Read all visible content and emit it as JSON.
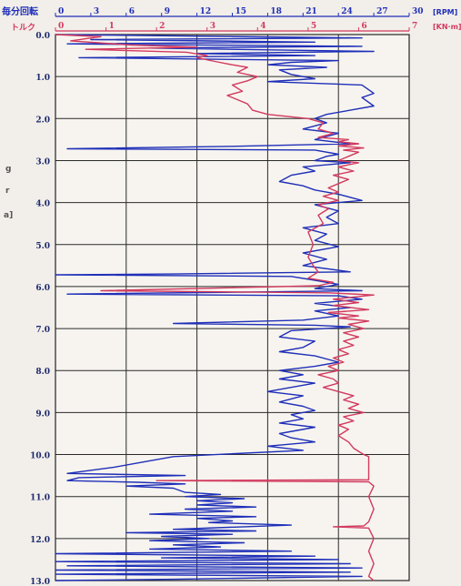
{
  "chart_data": {
    "type": "line",
    "orientation": "vertical-depth",
    "rpm_axis": {
      "label": "毎分回転",
      "unit": "[RPM]",
      "range": [
        0,
        30
      ],
      "ticks": [
        0,
        3,
        6,
        9,
        12,
        15,
        18,
        21,
        24,
        27,
        30
      ],
      "color": "#1f2fb8"
    },
    "torque_axis": {
      "label": "トルク",
      "unit": "[KN·m]",
      "range": [
        0,
        7
      ],
      "ticks": [
        0,
        1,
        2,
        3,
        4,
        5,
        6,
        7
      ],
      "color": "#d23a5e"
    },
    "depth_axis": {
      "range": [
        0,
        13
      ],
      "ticks": [
        "0.0",
        "1.0",
        "2.0",
        "3.0",
        "4.0",
        "5.0",
        "6.0",
        "7.0",
        "8.0",
        "9.0",
        "10.0",
        "11.0",
        "12.0",
        "13.0"
      ]
    },
    "grid": true,
    "side_marks": [
      "g",
      "r",
      "a]"
    ],
    "series": [
      {
        "color": "#1f2fb8",
        "axis": "rpm",
        "points": [
          [
            0,
            0.0
          ],
          [
            26,
            0.08
          ],
          [
            3,
            0.12
          ],
          [
            22,
            0.18
          ],
          [
            1,
            0.22
          ],
          [
            26,
            0.28
          ],
          [
            8,
            0.32
          ],
          [
            27,
            0.4
          ],
          [
            12,
            0.45
          ],
          [
            22,
            0.5
          ],
          [
            2,
            0.55
          ],
          [
            24,
            0.62
          ],
          [
            20,
            0.66
          ],
          [
            18,
            0.72
          ],
          [
            23,
            0.78
          ],
          [
            19,
            0.84
          ],
          [
            20,
            0.95
          ],
          [
            22,
            1.05
          ],
          [
            18,
            1.12
          ],
          [
            26,
            1.2
          ],
          [
            27,
            1.4
          ],
          [
            26,
            1.5
          ],
          [
            27,
            1.7
          ],
          [
            23,
            1.9
          ],
          [
            22,
            2.0
          ],
          [
            23,
            2.1
          ],
          [
            21,
            2.25
          ],
          [
            24,
            2.35
          ],
          [
            22,
            2.5
          ],
          [
            25,
            2.6
          ],
          [
            15,
            2.66
          ],
          [
            1,
            2.72
          ],
          [
            22,
            2.75
          ],
          [
            24,
            2.85
          ],
          [
            23,
            2.9
          ],
          [
            22,
            3.0
          ],
          [
            25,
            3.05
          ],
          [
            21,
            3.15
          ],
          [
            22,
            3.25
          ],
          [
            20,
            3.35
          ],
          [
            19,
            3.5
          ],
          [
            21,
            3.6
          ],
          [
            22,
            3.7
          ],
          [
            24,
            3.8
          ],
          [
            26,
            3.95
          ],
          [
            22,
            4.05
          ],
          [
            24,
            4.2
          ],
          [
            23,
            4.35
          ],
          [
            24,
            4.5
          ],
          [
            21,
            4.6
          ],
          [
            23,
            4.75
          ],
          [
            22,
            4.9
          ],
          [
            24,
            5.05
          ],
          [
            21,
            5.2
          ],
          [
            23,
            5.35
          ],
          [
            21,
            5.5
          ],
          [
            25,
            5.65
          ],
          [
            10,
            5.7
          ],
          [
            0,
            5.72
          ],
          [
            20,
            5.76
          ],
          [
            22,
            5.85
          ],
          [
            24,
            5.95
          ],
          [
            22,
            6.05
          ],
          [
            26,
            6.1
          ],
          [
            1,
            6.18
          ],
          [
            24,
            6.22
          ],
          [
            26,
            6.3
          ],
          [
            22,
            6.4
          ],
          [
            25,
            6.5
          ],
          [
            22,
            6.58
          ],
          [
            24,
            6.7
          ],
          [
            21,
            6.8
          ],
          [
            10,
            6.88
          ],
          [
            22,
            6.92
          ],
          [
            25,
            6.96
          ],
          [
            20,
            7.05
          ],
          [
            19,
            7.2
          ],
          [
            22,
            7.3
          ],
          [
            21,
            7.45
          ],
          [
            19,
            7.55
          ],
          [
            22,
            7.65
          ],
          [
            24,
            7.8
          ],
          [
            22,
            7.9
          ],
          [
            19,
            8.0
          ],
          [
            21,
            8.1
          ],
          [
            19,
            8.2
          ],
          [
            22,
            8.3
          ],
          [
            20,
            8.4
          ],
          [
            18,
            8.5
          ],
          [
            21,
            8.6
          ],
          [
            19,
            8.75
          ],
          [
            21,
            8.85
          ],
          [
            22,
            8.95
          ],
          [
            20,
            9.05
          ],
          [
            21,
            9.15
          ],
          [
            19,
            9.25
          ],
          [
            22,
            9.35
          ],
          [
            19,
            9.5
          ],
          [
            20,
            9.6
          ],
          [
            22,
            9.7
          ],
          [
            18,
            9.8
          ],
          [
            21,
            9.9
          ],
          [
            10,
            10.05
          ],
          [
            5,
            10.3
          ],
          [
            1,
            10.45
          ],
          [
            11,
            10.5
          ],
          [
            2,
            10.55
          ],
          [
            1,
            10.62
          ],
          [
            7,
            10.66
          ],
          [
            11,
            10.7
          ],
          [
            6,
            10.75
          ],
          [
            10,
            10.8
          ],
          [
            11,
            10.9
          ],
          [
            14,
            10.95
          ],
          [
            11,
            11.0
          ],
          [
            16,
            11.05
          ],
          [
            12,
            11.1
          ],
          [
            15,
            11.15
          ],
          [
            12,
            11.2
          ],
          [
            17,
            11.25
          ],
          [
            11,
            11.3
          ],
          [
            15,
            11.35
          ],
          [
            8,
            11.42
          ],
          [
            17,
            11.48
          ],
          [
            12,
            11.52
          ],
          [
            15,
            11.58
          ],
          [
            13,
            11.62
          ],
          [
            20,
            11.68
          ],
          [
            16,
            11.72
          ],
          [
            10,
            11.78
          ],
          [
            17,
            11.82
          ],
          [
            6,
            11.86
          ],
          [
            15,
            11.9
          ],
          [
            9,
            11.95
          ],
          [
            13,
            12.0
          ],
          [
            8,
            12.05
          ],
          [
            16,
            12.1
          ],
          [
            10,
            12.15
          ],
          [
            14,
            12.2
          ],
          [
            8,
            12.25
          ],
          [
            20,
            12.3
          ],
          [
            0,
            12.36
          ],
          [
            22,
            12.42
          ],
          [
            9,
            12.46
          ],
          [
            24,
            12.5
          ],
          [
            0,
            12.55
          ],
          [
            25,
            12.6
          ],
          [
            1,
            12.65
          ],
          [
            26,
            12.7
          ],
          [
            0,
            12.75
          ],
          [
            25,
            12.8
          ],
          [
            0,
            12.85
          ],
          [
            26,
            12.9
          ],
          [
            10,
            12.97
          ],
          [
            0,
            13.0
          ]
        ]
      },
      {
        "color": "#d23a5e",
        "axis": "torque",
        "points": [
          [
            0,
            0.0
          ],
          [
            0.9,
            0.05
          ],
          [
            0.6,
            0.1
          ],
          [
            0.3,
            0.15
          ],
          [
            1.5,
            0.25
          ],
          [
            2.8,
            0.3
          ],
          [
            0.6,
            0.35
          ],
          [
            2.6,
            0.42
          ],
          [
            3.0,
            0.5
          ],
          [
            2.8,
            0.55
          ],
          [
            3.2,
            0.65
          ],
          [
            3.5,
            0.72
          ],
          [
            3.8,
            0.78
          ],
          [
            3.6,
            0.9
          ],
          [
            4.0,
            1.0
          ],
          [
            3.8,
            1.1
          ],
          [
            3.5,
            1.2
          ],
          [
            3.7,
            1.35
          ],
          [
            3.4,
            1.45
          ],
          [
            3.6,
            1.55
          ],
          [
            3.8,
            1.65
          ],
          [
            3.9,
            1.8
          ],
          [
            4.2,
            1.9
          ],
          [
            5.0,
            2.0
          ],
          [
            5.3,
            2.1
          ],
          [
            5.2,
            2.25
          ],
          [
            5.5,
            2.35
          ],
          [
            5.2,
            2.45
          ],
          [
            5.8,
            2.5
          ],
          [
            5.6,
            2.55
          ],
          [
            6.0,
            2.6
          ],
          [
            5.6,
            2.65
          ],
          [
            6.1,
            2.7
          ],
          [
            5.7,
            2.75
          ],
          [
            6.0,
            2.8
          ],
          [
            5.8,
            2.9
          ],
          [
            5.6,
            3.0
          ],
          [
            6.0,
            3.05
          ],
          [
            5.6,
            3.15
          ],
          [
            5.9,
            3.25
          ],
          [
            5.5,
            3.35
          ],
          [
            5.8,
            3.45
          ],
          [
            5.6,
            3.55
          ],
          [
            5.4,
            3.65
          ],
          [
            5.6,
            3.75
          ],
          [
            5.3,
            3.85
          ],
          [
            5.6,
            3.95
          ],
          [
            5.2,
            4.05
          ],
          [
            5.4,
            4.15
          ],
          [
            5.2,
            4.3
          ],
          [
            5.3,
            4.5
          ],
          [
            5.0,
            4.7
          ],
          [
            5.1,
            5.0
          ],
          [
            5.0,
            5.3
          ],
          [
            5.1,
            5.5
          ],
          [
            5.2,
            5.65
          ],
          [
            5.0,
            5.8
          ],
          [
            5.5,
            5.9
          ],
          [
            5.2,
            5.98
          ],
          [
            0.9,
            6.1
          ],
          [
            5.4,
            6.15
          ],
          [
            6.3,
            6.2
          ],
          [
            5.5,
            6.3
          ],
          [
            6.0,
            6.38
          ],
          [
            5.5,
            6.45
          ],
          [
            6.2,
            6.55
          ],
          [
            5.4,
            6.62
          ],
          [
            6.0,
            6.7
          ],
          [
            5.6,
            6.75
          ],
          [
            6.2,
            6.82
          ],
          [
            5.8,
            6.9
          ],
          [
            6.1,
            7.0
          ],
          [
            5.7,
            7.1
          ],
          [
            6.0,
            7.2
          ],
          [
            5.7,
            7.3
          ],
          [
            5.9,
            7.4
          ],
          [
            5.6,
            7.5
          ],
          [
            5.8,
            7.6
          ],
          [
            5.5,
            7.7
          ],
          [
            5.7,
            7.8
          ],
          [
            5.4,
            7.9
          ],
          [
            5.6,
            8.0
          ],
          [
            5.2,
            8.1
          ],
          [
            5.5,
            8.2
          ],
          [
            5.6,
            8.3
          ],
          [
            5.3,
            8.4
          ],
          [
            5.6,
            8.5
          ],
          [
            5.9,
            8.6
          ],
          [
            5.7,
            8.7
          ],
          [
            6.0,
            8.8
          ],
          [
            5.8,
            8.9
          ],
          [
            6.1,
            9.0
          ],
          [
            5.7,
            9.1
          ],
          [
            5.9,
            9.2
          ],
          [
            5.6,
            9.3
          ],
          [
            5.8,
            9.4
          ],
          [
            5.6,
            9.55
          ],
          [
            5.8,
            9.7
          ],
          [
            5.9,
            9.85
          ],
          [
            6.1,
            10.0
          ],
          [
            6.2,
            10.05
          ],
          [
            6.2,
            10.6
          ],
          [
            2.0,
            10.62
          ],
          [
            6.2,
            10.65
          ],
          [
            6.3,
            10.75
          ],
          [
            6.2,
            11.0
          ],
          [
            6.3,
            11.3
          ],
          [
            6.2,
            11.6
          ],
          [
            6.1,
            11.7
          ],
          [
            5.5,
            11.72
          ],
          [
            6.2,
            11.75
          ],
          [
            6.3,
            12.0
          ],
          [
            6.2,
            12.3
          ],
          [
            6.3,
            12.6
          ],
          [
            6.2,
            12.9
          ],
          [
            6.3,
            13.0
          ]
        ]
      }
    ]
  }
}
